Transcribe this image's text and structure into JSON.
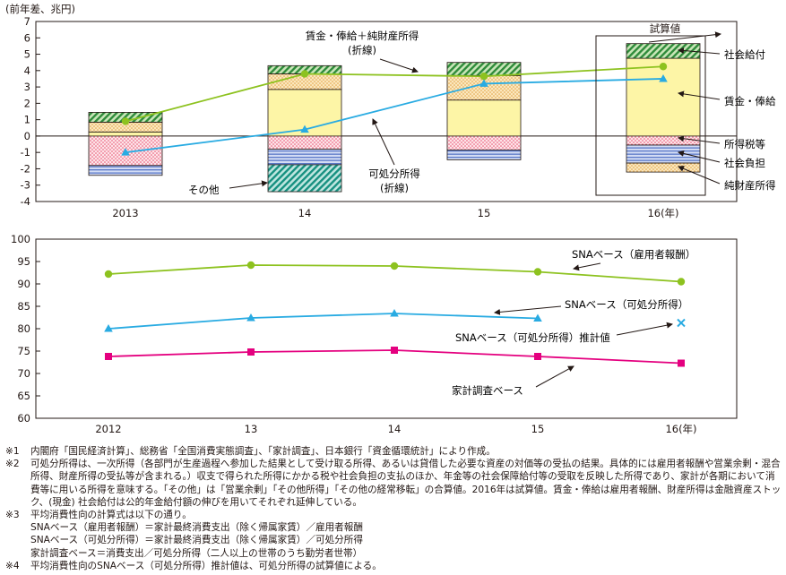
{
  "chart_data": [
    {
      "type": "bar",
      "stacked": true,
      "ylabel": "(前年差、兆円)",
      "ylim": [
        -4,
        7
      ],
      "yticks": [
        -4,
        -3,
        -2,
        -1,
        0,
        1,
        2,
        3,
        4,
        5,
        6,
        7
      ],
      "categories": [
        "2013",
        "14",
        "15",
        "16(年)"
      ],
      "grid": false,
      "estimate_box_label": "試算値",
      "series": [
        {
          "name": "社会給付",
          "values": [
            0.6,
            0.5,
            0.8,
            0.9
          ],
          "colors": {
            "fill": "#2e8b3a"
          }
        },
        {
          "name": "賃金・俸給",
          "values": [
            0.25,
            2.85,
            2.2,
            4.75
          ],
          "colors": {
            "fill": "#fdf5a6"
          }
        },
        {
          "name": "その他",
          "values": [
            0.6,
            0.95,
            1.5,
            0
          ],
          "colors": {
            "fill": "#f3d9a0"
          }
        },
        {
          "name": "所得税等",
          "values": [
            -1.8,
            -0.8,
            -0.85,
            -0.55
          ],
          "colors": {
            "fill": "#f5a3b0"
          }
        },
        {
          "name": "社会負担",
          "values": [
            -0.6,
            -0.95,
            -0.6,
            -1.1
          ],
          "colors": {
            "fill": "#7b93d6"
          }
        },
        {
          "name": "純財産所得",
          "values": [
            0,
            0,
            0,
            -0.55
          ],
          "colors": {
            "fill": "#f3d9a0"
          }
        },
        {
          "name": "その他(負)",
          "values": [
            0,
            -1.65,
            0,
            0
          ],
          "colors": {
            "fill": "#3aa79c"
          }
        }
      ],
      "lines": [
        {
          "name": "賃金・俸給＋純財産所得\n(折線)",
          "values": [
            0.9,
            3.8,
            3.65,
            4.25
          ],
          "color": "#8dc21f",
          "marker": "circle"
        },
        {
          "name": "可処分所得\n(折線)",
          "values": [
            -1.0,
            0.4,
            3.2,
            3.5
          ],
          "color": "#29abe2",
          "marker": "triangle"
        }
      ],
      "annotations": [
        "賃金・俸給＋純財産所得",
        "(折線)",
        "可処分所得",
        "(折線)",
        "その他",
        "社会給付",
        "賃金・俸給",
        "所得税等",
        "社会負担",
        "純財産所得"
      ]
    },
    {
      "type": "line",
      "ylim": [
        60,
        100
      ],
      "yticks": [
        60,
        65,
        70,
        75,
        80,
        85,
        90,
        95,
        100
      ],
      "x": [
        "2012",
        "13",
        "14",
        "15",
        "16(年)"
      ],
      "grid": false,
      "series": [
        {
          "name": "SNAベース（雇用者報酬）",
          "values": [
            92.2,
            94.2,
            94.0,
            92.7,
            90.5
          ],
          "color": "#8dc21f",
          "marker": "circle"
        },
        {
          "name": "SNAベース（可処分所得）",
          "values": [
            80.0,
            82.4,
            83.4,
            82.3,
            null
          ],
          "color": "#29abe2",
          "marker": "triangle"
        },
        {
          "name": "SNAベース（可処分所得）推計値",
          "values": [
            null,
            null,
            null,
            null,
            81.3
          ],
          "color": "#29abe2",
          "marker": "cross"
        },
        {
          "name": "家計調査ベース",
          "values": [
            73.8,
            74.8,
            75.2,
            73.8,
            72.3
          ],
          "color": "#e4007f",
          "marker": "square"
        }
      ]
    }
  ],
  "notes": [
    {
      "mark": "※1",
      "text": "内閣府「国民経済計算」、総務省「全国消費実態調査」、「家計調査」、日本銀行「資金循環統計」により作成。"
    },
    {
      "mark": "※2",
      "text": "可処分所得は、一次所得（各部門が生産過程へ参加した結果として受け取る所得、あるいは貸借した必要な資産の対価等の受払の結果。具体的には雇用者報酬や営業余剰・混合所得、財産所得の受払等が含まれる。）収支で得られた所得にかかる税や社会負担の支払のほか、年金等の社会保障給付等の受取を反映した所得であり、家計が各期において消費等に用いる所得を意味する。「その他」は「営業余剰」「その他所得」「その他の経常移転」の合算値。2016年は試算値。賃金・俸給は雇用者報酬、財産所得は金融資産ストック、(現金) 社会給付は公的年金給付額の伸びを用いてそれぞれ延伸している。"
    },
    {
      "mark": "※3",
      "text": "平均消費性向の計算式は以下の通り。"
    },
    {
      "mark": "",
      "text": "SNAベース（雇用者報酬）＝家計最終消費支出（除く帰属家賃）／雇用者報酬"
    },
    {
      "mark": "",
      "text": "SNAベース（可処分所得）＝家計最終消費支出（除く帰属家賃）／可処分所得"
    },
    {
      "mark": "",
      "text": "家計調査ベース＝消費支出／可処分所得（二人以上の世帯のうち勤労者世帯）"
    },
    {
      "mark": "※4",
      "text": "平均消費性向のSNAベース（可処分所得）推計値は、可処分所得の試算値による。"
    }
  ]
}
